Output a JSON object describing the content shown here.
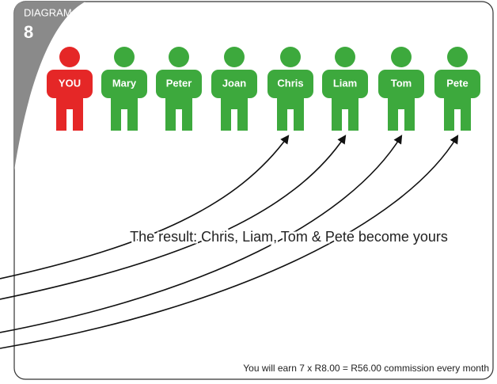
{
  "header": {
    "label": "DIAGRAM",
    "number": "8"
  },
  "people": [
    "YOU",
    "Mary",
    "Peter",
    "Joan",
    "Chris",
    "Liam",
    "Tom",
    "Pete"
  ],
  "result": "The result: Chris, Liam, Tom & Pete become yours",
  "footer": "You will earn 7 x R8.00 = R56.00 commission every month"
}
